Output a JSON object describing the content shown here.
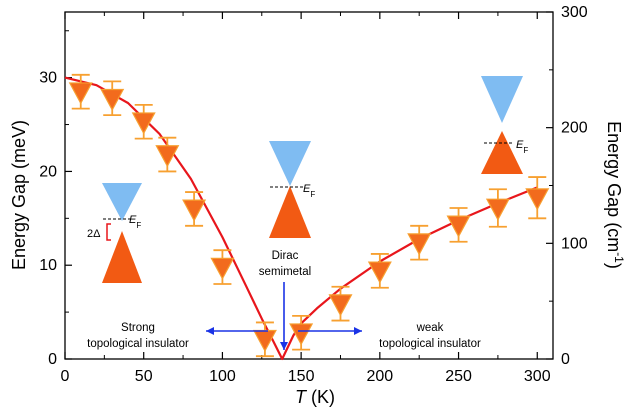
{
  "chart_data": {
    "type": "scatter",
    "xlabel_italic": "T",
    "xlabel_unit": " (K)",
    "ylabel": "Energy Gap (meV)",
    "y2label_main": "Energy Gap (cm",
    "y2label_sup": "-1",
    "y2label_end": ")",
    "xlim": [
      0,
      310
    ],
    "ylim": [
      0,
      37
    ],
    "y2lim": [
      0,
      300
    ],
    "x_ticks": [
      "0",
      "50",
      "100",
      "150",
      "200",
      "250",
      "300"
    ],
    "y_ticks": [
      "0",
      "10",
      "20",
      "30"
    ],
    "y2_ticks": [
      "0",
      "100",
      "200",
      "300"
    ],
    "series": [
      {
        "values": [
          {
            "x": 10,
            "y": 28.5,
            "err": 1.8
          },
          {
            "x": 30,
            "y": 27.8,
            "err": 1.8
          },
          {
            "x": 50,
            "y": 25.3,
            "err": 1.8
          },
          {
            "x": 65,
            "y": 21.8,
            "err": 1.8
          },
          {
            "x": 82,
            "y": 16.0,
            "err": 1.8
          },
          {
            "x": 100,
            "y": 9.8,
            "err": 1.8
          },
          {
            "x": 127,
            "y": 2.1,
            "err": 1.8
          },
          {
            "x": 150,
            "y": 2.8,
            "err": 1.8
          },
          {
            "x": 175,
            "y": 5.9,
            "err": 1.8
          },
          {
            "x": 200,
            "y": 9.4,
            "err": 1.8
          },
          {
            "x": 225,
            "y": 12.4,
            "err": 1.8
          },
          {
            "x": 250,
            "y": 14.3,
            "err": 1.8
          },
          {
            "x": 275,
            "y": 16.1,
            "err": 2.0
          },
          {
            "x": 300,
            "y": 17.2,
            "err": 2.2
          }
        ]
      }
    ],
    "fit_curve": [
      {
        "x": 0,
        "y": 30.0
      },
      {
        "x": 20,
        "y": 29.2
      },
      {
        "x": 40,
        "y": 27.3
      },
      {
        "x": 60,
        "y": 24.0
      },
      {
        "x": 80,
        "y": 19.2
      },
      {
        "x": 100,
        "y": 13.0
      },
      {
        "x": 115,
        "y": 7.8
      },
      {
        "x": 125,
        "y": 4.3
      },
      {
        "x": 132,
        "y": 2.0
      },
      {
        "x": 138,
        "y": 0
      },
      {
        "x": 145,
        "y": 2.5
      },
      {
        "x": 150,
        "y": 3.8
      },
      {
        "x": 160,
        "y": 5.4
      },
      {
        "x": 175,
        "y": 7.5
      },
      {
        "x": 200,
        "y": 10.4
      },
      {
        "x": 225,
        "y": 12.8
      },
      {
        "x": 250,
        "y": 14.8
      },
      {
        "x": 275,
        "y": 16.6
      },
      {
        "x": 300,
        "y": 18.3
      }
    ],
    "annotations": {
      "strong_line1": "Strong",
      "strong_line2": "topological insulator",
      "dirac_line1": "Dirac",
      "dirac_line2": "semimetal",
      "weak_line1": "weak",
      "weak_line2": "topological insulator",
      "fermi_italic": "E",
      "fermi_sub": "F",
      "gap_label": "2Δ"
    },
    "colors": {
      "marker_fill": "#f26b1d",
      "marker_edge": "#f7a030",
      "fit_line": "#e8161c",
      "cone_upper": "#7fbcf2",
      "cone_lower": "#f25a13",
      "arrow": "#1a33e6"
    }
  }
}
